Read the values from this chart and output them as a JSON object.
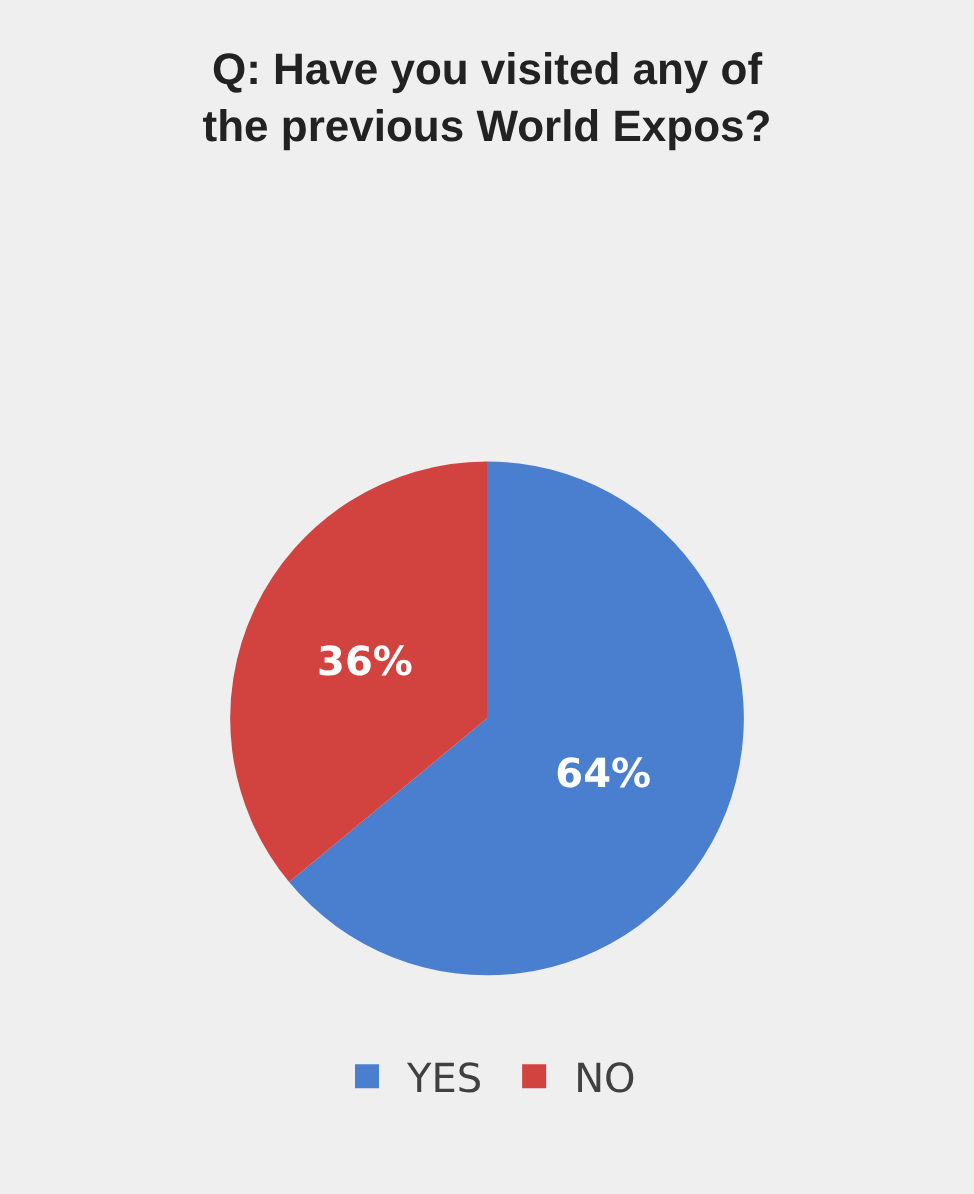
{
  "chart_data": {
    "type": "pie",
    "title": "Q: Have you visited any of the previous World Expos?",
    "categories": [
      "YES",
      "NO"
    ],
    "values": [
      64,
      36
    ],
    "colors": [
      "#4a7fd0",
      "#d2433f"
    ],
    "value_labels": [
      "64%",
      "36%"
    ],
    "legend": "bottom"
  }
}
